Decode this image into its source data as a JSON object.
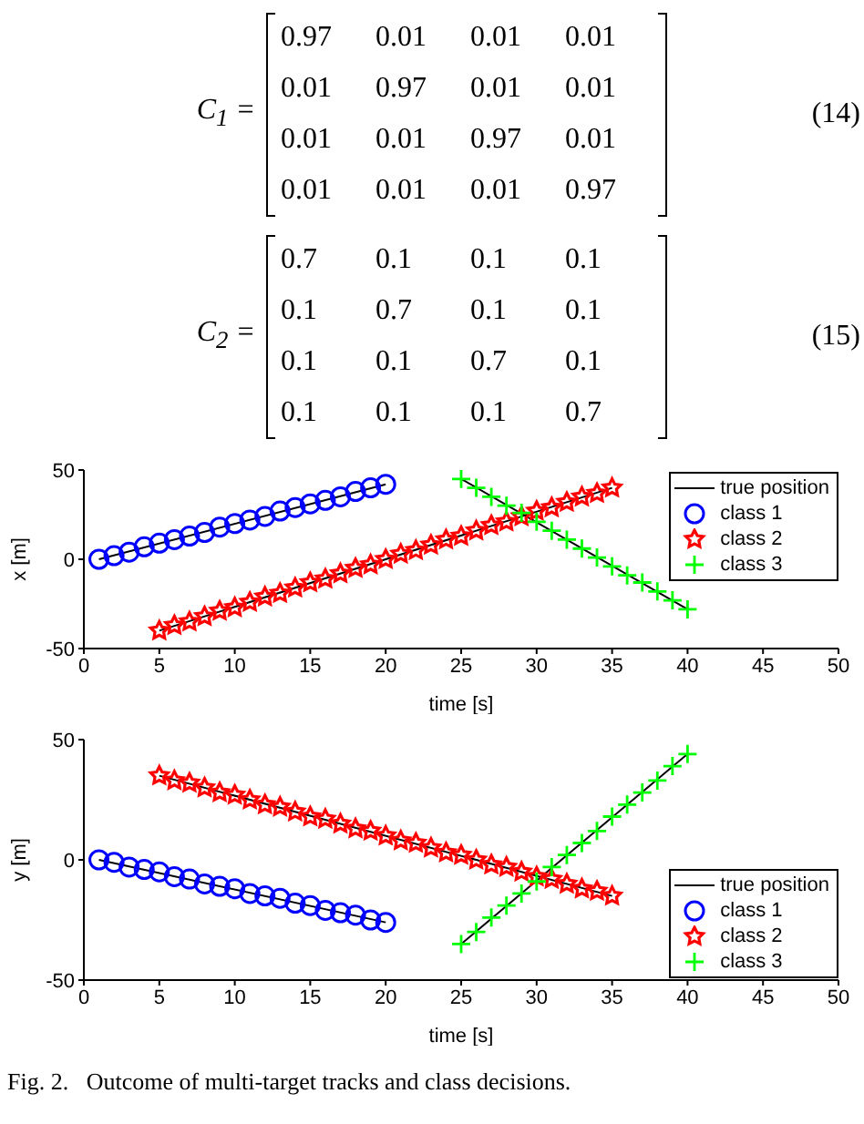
{
  "chart_data": [
    {
      "type": "other",
      "annotations": [
        "C$_{1}$ =",
        "0.97 0.01 0.01 0.01",
        "0.01 0.97 0.01 0.01",
        "0.01 0.01 0.97 0.01",
        "0.01 0.01 0.01 0.97",
        "(14)",
        "C$_{2}$ =",
        "0.7 0.1 0.1 0.1",
        "0.1 0.7 0.1 0.1",
        "0.1 0.1 0.7 0.1",
        "0.1 0.1 0.1 0.7",
        "(15)"
      ]
    },
    {
      "type": "scatter",
      "xlabel": "time [s]",
      "ylabel": "x [m]",
      "xlim": [
        0,
        50
      ],
      "xticks": [
        0,
        5,
        10,
        15,
        20,
        25,
        30,
        35,
        40,
        45,
        50
      ],
      "ylim": [
        -50,
        50
      ],
      "yticks": [
        -50,
        0,
        50
      ],
      "grid": false,
      "legend": "top right",
      "series": [
        {
          "name": "true position",
          "type": "line",
          "color": "#000000",
          "marker": "none",
          "x": [
            1,
            20
          ],
          "values": [
            0,
            42
          ]
        },
        {
          "type": "line",
          "color": "#000000",
          "marker": "none",
          "x": [
            5,
            35
          ],
          "values": [
            -40,
            40
          ]
        },
        {
          "type": "line",
          "color": "#000000",
          "marker": "none",
          "x": [
            25,
            40
          ],
          "values": [
            45,
            -28
          ]
        },
        {
          "name": "class 1",
          "color": "#0000ff",
          "marker": "circle",
          "x": [
            1,
            2,
            3,
            4,
            5,
            6,
            7,
            8,
            9,
            10,
            11,
            12,
            13,
            14,
            15,
            16,
            17,
            18,
            19,
            20
          ],
          "values": [
            0,
            2,
            4,
            7,
            9,
            11,
            13,
            15,
            18,
            20,
            22,
            24,
            27,
            29,
            31,
            33,
            35,
            38,
            40,
            42
          ]
        },
        {
          "name": "class 2",
          "color": "#ff0000",
          "marker": "star",
          "x": [
            5,
            6,
            7,
            8,
            9,
            10,
            11,
            12,
            13,
            14,
            15,
            16,
            17,
            18,
            19,
            20,
            21,
            22,
            23,
            24,
            25,
            26,
            27,
            28,
            29,
            30,
            31,
            32,
            33,
            34,
            35
          ],
          "values": [
            -40,
            -37,
            -35,
            -32,
            -29,
            -27,
            -24,
            -21,
            -19,
            -16,
            -13,
            -11,
            -8,
            -5,
            -3,
            0,
            3,
            5,
            8,
            11,
            13,
            16,
            19,
            21,
            24,
            27,
            29,
            32,
            35,
            37,
            40
          ]
        },
        {
          "name": "class 3",
          "color": "#00ff00",
          "marker": "cross",
          "x": [
            25,
            26,
            27,
            28,
            29,
            30,
            31,
            32,
            33,
            34,
            35,
            36,
            37,
            38,
            39,
            40
          ],
          "values": [
            45,
            40,
            35,
            30,
            26,
            21,
            16,
            11,
            6,
            1,
            -4,
            -9,
            -13,
            -18,
            -23,
            -28
          ]
        }
      ]
    },
    {
      "type": "scatter",
      "xlabel": "time [s]",
      "ylabel": "y [m]",
      "xlim": [
        0,
        50
      ],
      "xticks": [
        0,
        5,
        10,
        15,
        20,
        25,
        30,
        35,
        40,
        45,
        50
      ],
      "ylim": [
        -50,
        50
      ],
      "yticks": [
        -50,
        0,
        50
      ],
      "grid": false,
      "legend": "bottom right",
      "annotations": [
        "Fig. 2.   Outcome of multi-target tracks and class decisions."
      ],
      "series": [
        {
          "name": "true position",
          "type": "line",
          "color": "#000000",
          "marker": "none",
          "x": [
            1,
            20
          ],
          "values": [
            0,
            -26
          ]
        },
        {
          "type": "line",
          "color": "#000000",
          "marker": "none",
          "x": [
            5,
            35
          ],
          "values": [
            35,
            -15
          ]
        },
        {
          "type": "line",
          "color": "#000000",
          "marker": "none",
          "x": [
            25,
            40
          ],
          "values": [
            -35,
            44
          ]
        },
        {
          "name": "class 1",
          "color": "#0000ff",
          "marker": "circle",
          "x": [
            1,
            2,
            3,
            4,
            5,
            6,
            7,
            8,
            9,
            10,
            11,
            12,
            13,
            14,
            15,
            16,
            17,
            18,
            19,
            20
          ],
          "values": [
            0,
            -1,
            -3,
            -4,
            -5,
            -7,
            -8,
            -10,
            -11,
            -12,
            -14,
            -15,
            -16,
            -18,
            -19,
            -21,
            -22,
            -23,
            -25,
            -26
          ]
        },
        {
          "name": "class 2",
          "color": "#ff0000",
          "marker": "star",
          "x": [
            5,
            6,
            7,
            8,
            9,
            10,
            11,
            12,
            13,
            14,
            15,
            16,
            17,
            18,
            19,
            20,
            21,
            22,
            23,
            24,
            25,
            26,
            27,
            28,
            29,
            30,
            31,
            32,
            33,
            34,
            35
          ],
          "values": [
            35,
            33,
            32,
            30,
            28,
            27,
            25,
            23,
            22,
            20,
            18,
            17,
            15,
            13,
            12,
            10,
            8,
            7,
            5,
            3,
            2,
            0,
            -2,
            -3,
            -5,
            -7,
            -8,
            -10,
            -12,
            -13,
            -15
          ]
        },
        {
          "name": "class 3",
          "color": "#00ff00",
          "marker": "cross",
          "x": [
            25,
            26,
            27,
            28,
            29,
            30,
            31,
            32,
            33,
            34,
            35,
            36,
            37,
            38,
            39,
            40
          ],
          "values": [
            -35,
            -30,
            -24,
            -19,
            -14,
            -9,
            -3,
            2,
            7,
            12,
            18,
            23,
            28,
            33,
            39,
            44
          ]
        }
      ]
    }
  ]
}
